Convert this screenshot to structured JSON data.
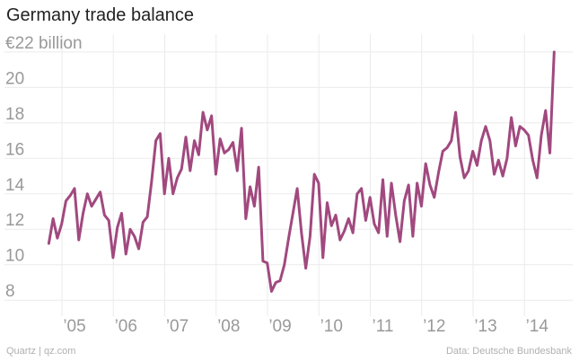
{
  "title": "Germany trade balance",
  "footer": {
    "source_left": "Quartz | qz.com",
    "source_right": "Data: Deutsche Bundesbank"
  },
  "colors": {
    "line": "#a1497f",
    "grid": "#ebebeb",
    "tick_label": "#999999"
  },
  "chart_data": {
    "type": "line",
    "title": "Germany trade balance",
    "xlabel": "",
    "ylabel": "€ billion",
    "ylim": [
      7.2,
      22.6
    ],
    "y_ticks": [
      {
        "value": 22,
        "label": "€22 billion"
      },
      {
        "value": 20,
        "label": "20"
      },
      {
        "value": 18,
        "label": "18"
      },
      {
        "value": 16,
        "label": "16"
      },
      {
        "value": 14,
        "label": "14"
      },
      {
        "value": 12,
        "label": "12"
      },
      {
        "value": 10,
        "label": "10"
      },
      {
        "value": 8,
        "label": "8"
      }
    ],
    "x_ticks": [
      {
        "year": 2005,
        "label": "’05"
      },
      {
        "year": 2006,
        "label": "’06"
      },
      {
        "year": 2007,
        "label": "’07"
      },
      {
        "year": 2008,
        "label": "’08"
      },
      {
        "year": 2009,
        "label": "’09"
      },
      {
        "year": 2010,
        "label": "’10"
      },
      {
        "year": 2011,
        "label": "’11"
      },
      {
        "year": 2012,
        "label": "’12"
      },
      {
        "year": 2013,
        "label": "’13"
      },
      {
        "year": 2014,
        "label": "’14"
      }
    ],
    "grid": true,
    "legend": "none",
    "series": [
      {
        "x_start": "2004-07",
        "frequency": "monthly",
        "values": [
          11.2,
          12.6,
          11.5,
          12.3,
          13.6,
          13.9,
          14.3,
          11.4,
          12.9,
          14.0,
          13.3,
          13.7,
          14.1,
          12.8,
          12.5,
          10.4,
          12.1,
          12.9,
          10.6,
          12.0,
          11.6,
          10.9,
          12.4,
          12.7,
          14.7,
          17.0,
          17.4,
          14.0,
          16.0,
          14.0,
          14.9,
          15.4,
          17.2,
          15.3,
          17.0,
          16.2,
          18.6,
          17.6,
          18.4,
          15.1,
          17.1,
          16.3,
          16.5,
          16.9,
          15.3,
          17.7,
          12.6,
          14.4,
          13.3,
          15.5,
          10.2,
          10.1,
          8.5,
          9.0,
          9.1,
          10.0,
          11.5,
          12.9,
          14.3,
          11.8,
          9.8,
          11.6,
          15.1,
          14.6,
          10.4,
          13.5,
          12.2,
          12.8,
          11.4,
          11.9,
          12.6,
          11.8,
          14.0,
          14.3,
          12.5,
          13.8,
          12.3,
          11.8,
          14.8,
          11.6,
          14.6,
          12.8,
          11.3,
          13.6,
          14.5,
          11.6,
          14.6,
          13.3,
          15.7,
          14.5,
          13.8,
          15.2,
          16.4,
          16.6,
          17.0,
          18.6,
          16.1,
          14.9,
          15.3,
          16.4,
          15.6,
          17.0,
          17.8,
          17.0,
          15.1,
          15.9,
          15.0,
          16.0,
          18.3,
          16.7,
          17.8,
          17.6,
          17.3,
          15.9,
          14.9,
          17.3,
          18.7,
          16.3,
          22.0
        ]
      }
    ]
  }
}
